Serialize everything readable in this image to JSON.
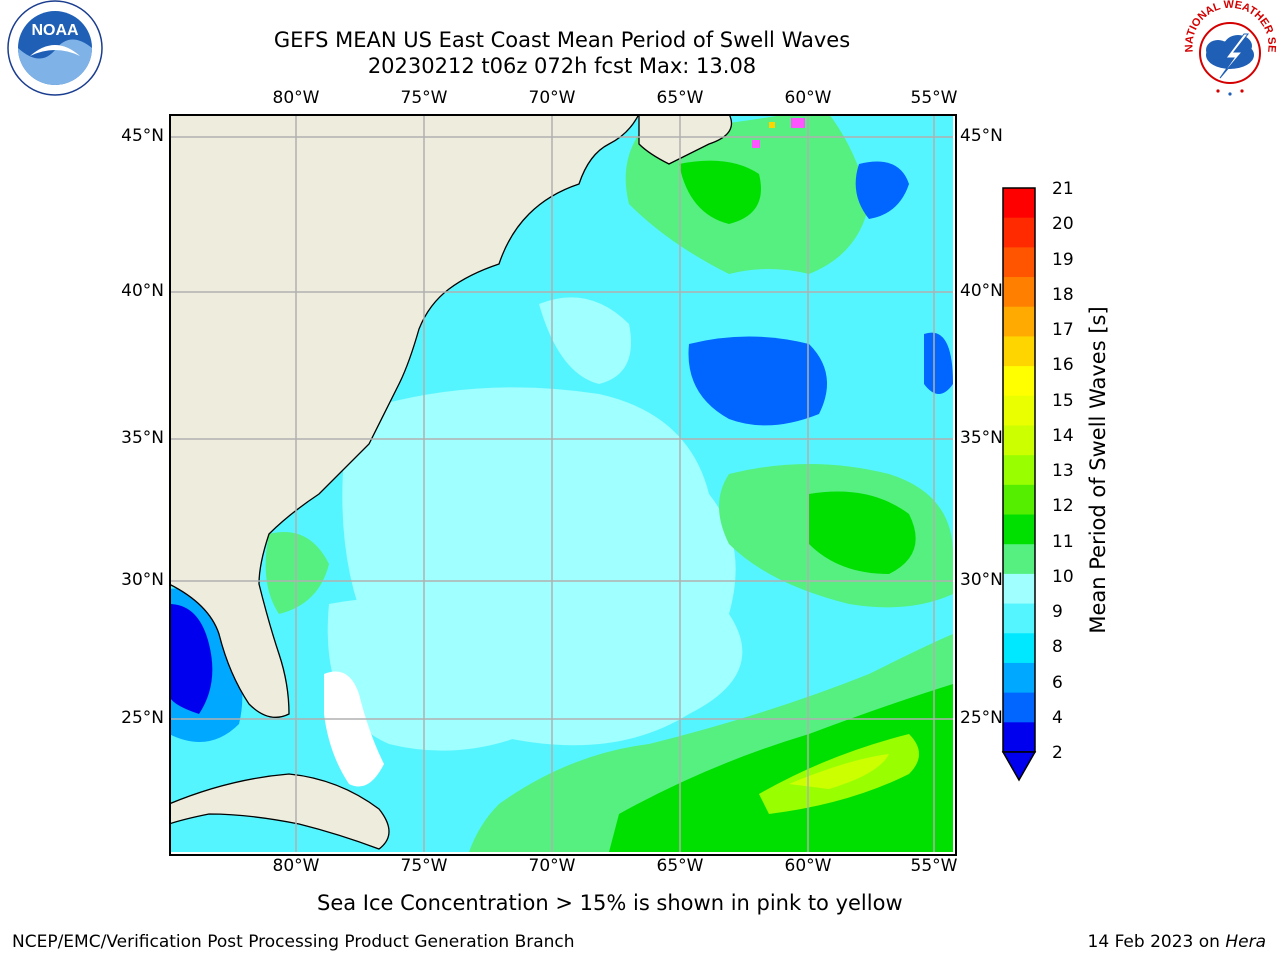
{
  "header": {
    "title_line1": "GEFS MEAN US East Coast Mean Period of Swell Waves",
    "title_line2": "20230212 t06z 072h fcst   Max: 13.08"
  },
  "map": {
    "lon_ticks": [
      "80°W",
      "75°W",
      "70°W",
      "65°W",
      "60°W",
      "55°W"
    ],
    "lat_ticks": [
      "45°N",
      "40°N",
      "35°N",
      "30°N",
      "25°N"
    ],
    "land_color": "#eeecdc",
    "grid_color": "#b0b0b0"
  },
  "colorbar": {
    "title": "Mean Period of Swell Waves [s]",
    "tick_labels": [
      "21",
      "20",
      "19",
      "18",
      "17",
      "16",
      "15",
      "14",
      "13",
      "12",
      "11",
      "10",
      "9",
      "8",
      "6",
      "4",
      "2"
    ],
    "colors": [
      "#ff0000",
      "#ff2a00",
      "#ff5500",
      "#ff8000",
      "#ffaa00",
      "#ffd500",
      "#ffff00",
      "#eaff00",
      "#ccff00",
      "#99ff00",
      "#55ee00",
      "#00e000",
      "#55f080",
      "#a0ffff",
      "#55f5ff",
      "#00e8ff",
      "#00a8ff",
      "#0066ff",
      "#0000ee"
    ]
  },
  "notes": {
    "sea_ice": "Sea Ice Concentration > 15% is shown in pink to yellow"
  },
  "footer": {
    "left": "NCEP/EMC/Verification Post Processing Product Generation Branch",
    "date": "14 Feb 2023 on ",
    "machine": "Hera"
  },
  "logos": {
    "noaa_text": "NOAA",
    "nws_text": "NATIONAL WEATHER SERVICE"
  }
}
